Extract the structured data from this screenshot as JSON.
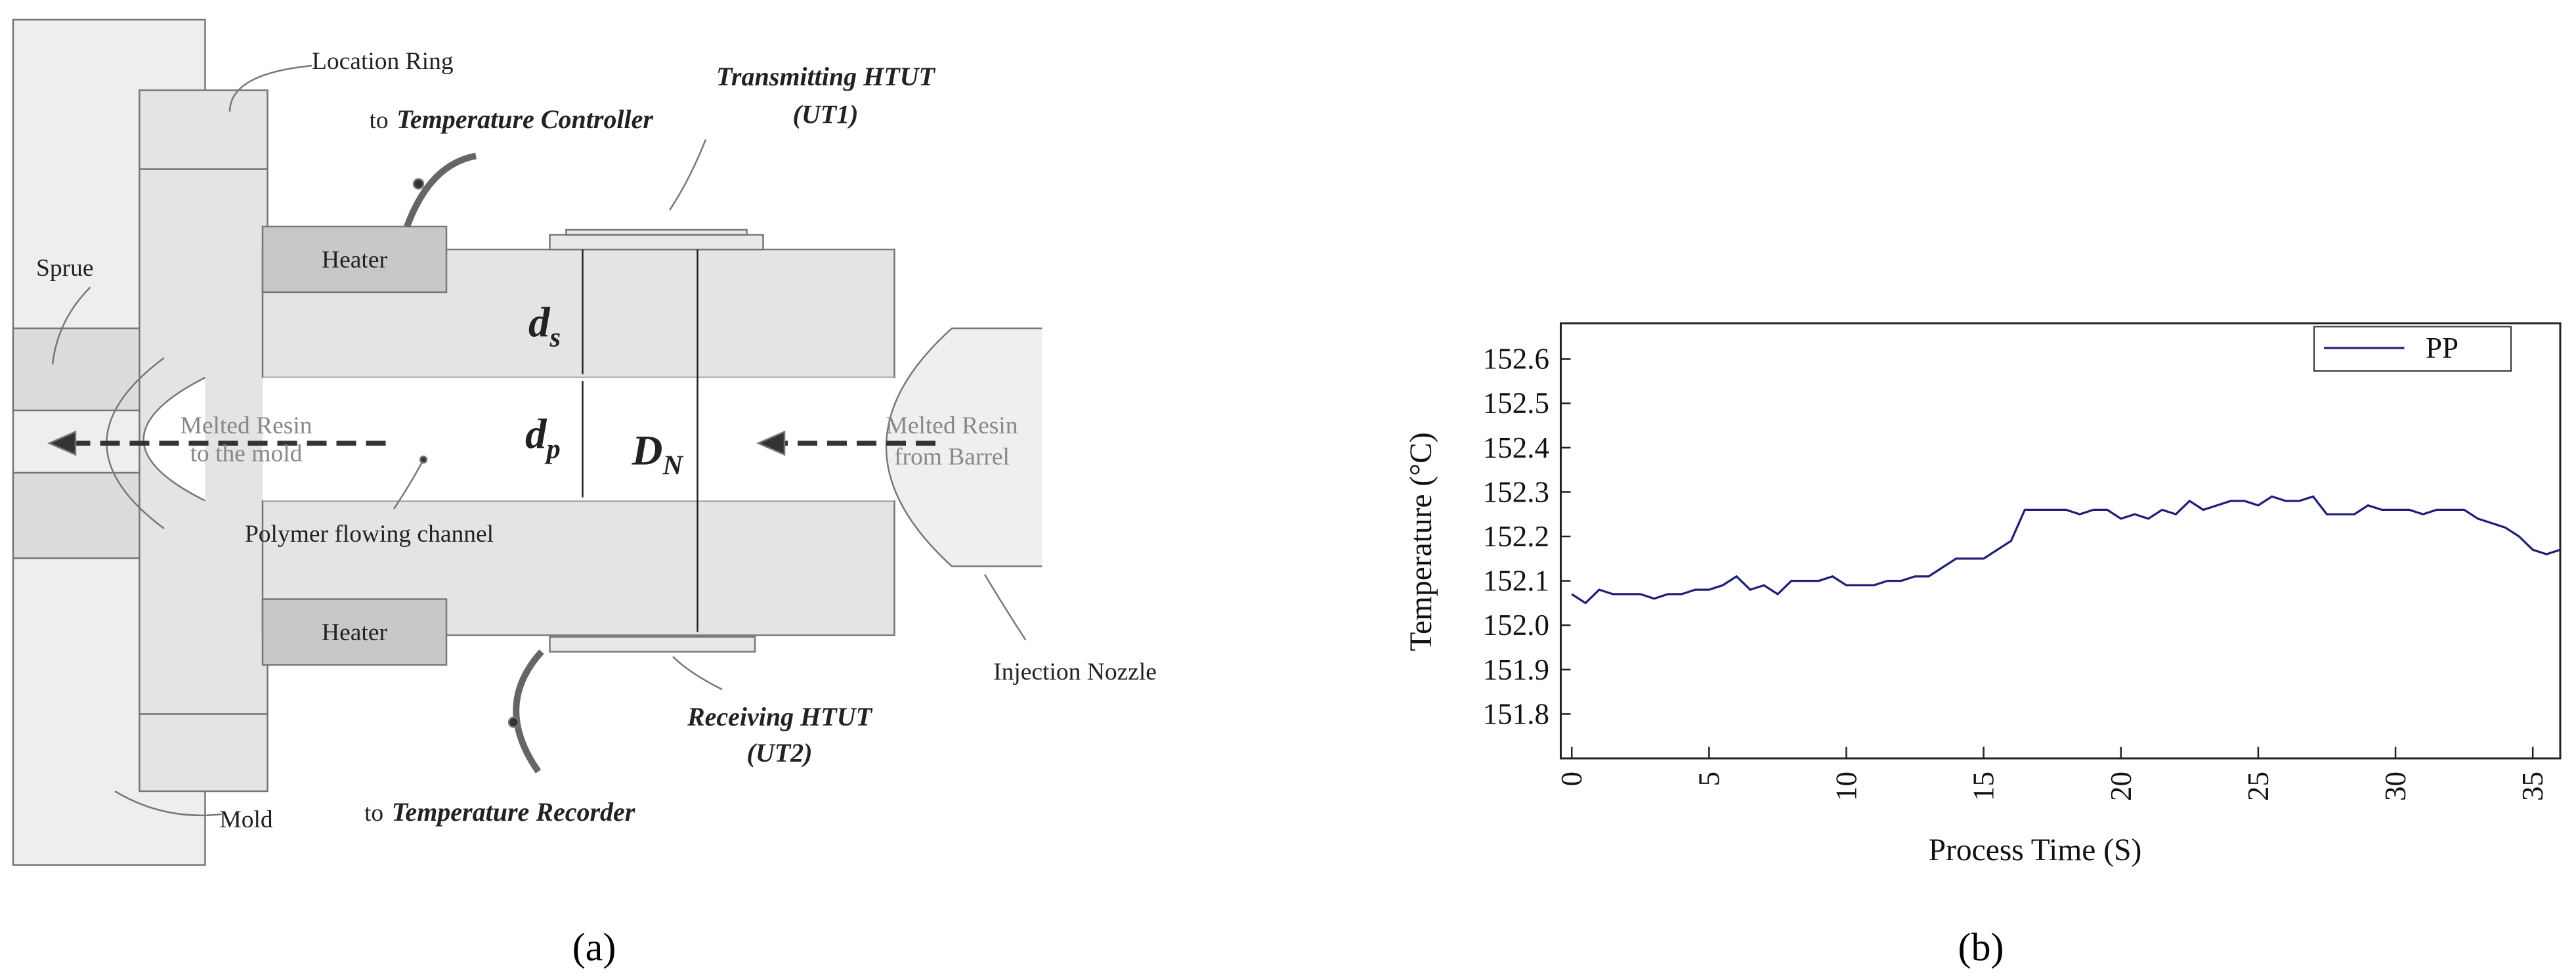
{
  "diagram": {
    "location_ring": "Location Ring",
    "temperature_controller": {
      "prefix": "to",
      "name": "Temperature Controller"
    },
    "transmitting": {
      "name": "Transmitting HTUT",
      "id": "(UT1)"
    },
    "sprue": "Sprue",
    "heaters": [
      "Heater",
      "Heater"
    ],
    "ds": {
      "main": "d",
      "sub": "s"
    },
    "dp": {
      "main": "d",
      "sub": "p"
    },
    "dn": {
      "main": "D",
      "sub": "N"
    },
    "resin_out": [
      "Melted Resin",
      "to the mold"
    ],
    "resin_in": [
      "Melted Resin",
      "from Barrel"
    ],
    "channel": "Polymer flowing channel",
    "nozzle": "Injection Nozzle",
    "receiving": {
      "name": "Receiving HTUT",
      "id": "(UT2)"
    },
    "mold": "Mold",
    "temperature_recorder": {
      "prefix": "to",
      "name": "Temperature Recorder"
    }
  },
  "captions": [
    "(a)",
    "(b)"
  ],
  "chart_data": {
    "type": "line",
    "xlabel": "Process Time (S)",
    "ylabel": "Temperature (°C)",
    "x": [
      0,
      0.5,
      1,
      1.5,
      2,
      2.5,
      3,
      3.5,
      4,
      4.5,
      5,
      5.5,
      6,
      6.5,
      7,
      7.5,
      8,
      8.5,
      9,
      9.5,
      10,
      10.5,
      11,
      11.5,
      12,
      12.5,
      13,
      13.5,
      14,
      14.5,
      15,
      15.5,
      16,
      16.5,
      17,
      17.5,
      18,
      18.5,
      19,
      19.5,
      20,
      20.5,
      21,
      21.5,
      22,
      22.5,
      23,
      23.5,
      24,
      24.5,
      25,
      25.5,
      26,
      26.5,
      27,
      27.5,
      28,
      28.5,
      29,
      29.5,
      30,
      30.5,
      31,
      31.5,
      32,
      32.5,
      33,
      33.5,
      34,
      34.5,
      35,
      35.5,
      36
    ],
    "series": [
      {
        "name": "PP",
        "color": "#1f1f7a",
        "values": [
          152.07,
          152.05,
          152.08,
          152.07,
          152.07,
          152.07,
          152.06,
          152.07,
          152.07,
          152.08,
          152.08,
          152.09,
          152.11,
          152.08,
          152.09,
          152.07,
          152.1,
          152.1,
          152.1,
          152.11,
          152.09,
          152.09,
          152.09,
          152.1,
          152.1,
          152.11,
          152.11,
          152.13,
          152.15,
          152.15,
          152.15,
          152.17,
          152.19,
          152.26,
          152.26,
          152.26,
          152.26,
          152.25,
          152.26,
          152.26,
          152.24,
          152.25,
          152.24,
          152.26,
          152.25,
          152.28,
          152.26,
          152.27,
          152.28,
          152.28,
          152.27,
          152.29,
          152.28,
          152.28,
          152.29,
          152.25,
          152.25,
          152.25,
          152.27,
          152.26,
          152.26,
          152.26,
          152.25,
          152.26,
          152.26,
          152.26,
          152.24,
          152.23,
          152.22,
          152.2,
          152.17,
          152.16,
          152.17
        ]
      }
    ],
    "xlim": [
      -0.4,
      36
    ],
    "ylim": [
      151.7,
      152.68
    ],
    "xticks": [
      0,
      5,
      10,
      15,
      20,
      25,
      30,
      35
    ],
    "yticks": [
      151.8,
      151.9,
      {
        "value": 152.0,
        "label": "152.0"
      },
      152.1,
      152.2,
      152.3,
      152.4,
      152.5,
      152.6
    ],
    "grid": false,
    "legend": "upper right"
  }
}
